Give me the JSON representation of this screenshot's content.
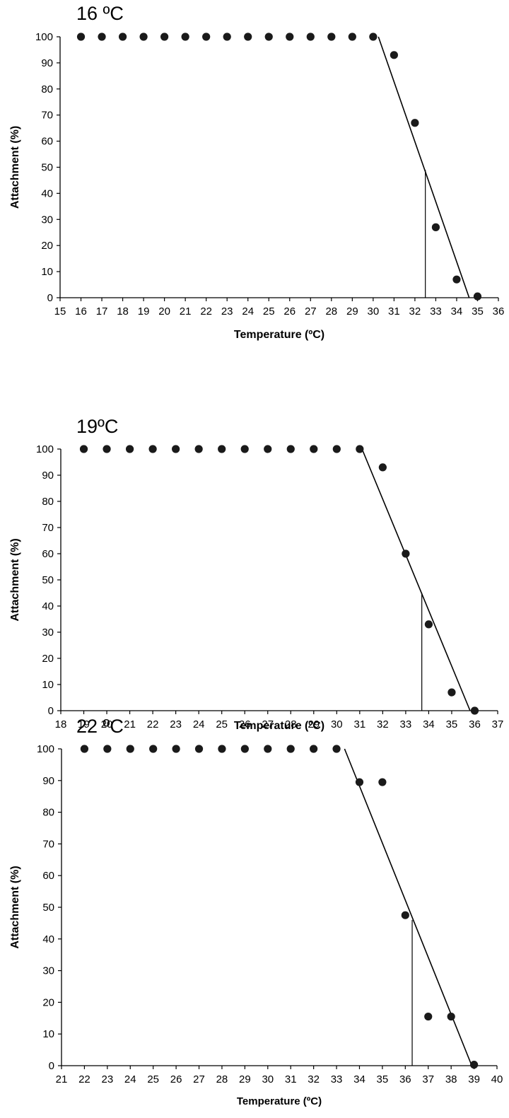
{
  "chart_data": [
    {
      "type": "scatter",
      "title": "16 ºC",
      "xlabel": "Temperature (ºC)",
      "ylabel": "Attachment (%)",
      "xlim": [
        15,
        36
      ],
      "ylim": [
        0,
        100
      ],
      "xticks": [
        "15",
        "16",
        "17",
        "18",
        "19",
        "20",
        "21",
        "22",
        "23",
        "24",
        "25",
        "26",
        "27",
        "28",
        "29",
        "30",
        "31",
        "32",
        "33",
        "34",
        "35",
        "36"
      ],
      "yticks": [
        "0",
        "10",
        "20",
        "30",
        "40",
        "50",
        "60",
        "70",
        "80",
        "90",
        "100"
      ],
      "grid": false,
      "legend": "none",
      "points": {
        "x": [
          16,
          17,
          18,
          19,
          20,
          21,
          22,
          23,
          24,
          25,
          26,
          27,
          28,
          29,
          30,
          31,
          32,
          33,
          34,
          35
        ],
        "y": [
          100,
          100,
          100,
          100,
          100,
          100,
          100,
          100,
          100,
          100,
          100,
          100,
          100,
          100,
          100,
          93,
          67,
          27,
          7,
          0.5
        ]
      },
      "fit_line": {
        "x": [
          30.25,
          34.6
        ],
        "y": [
          100,
          0
        ]
      },
      "midpoint_line": {
        "x": 32.5,
        "y": [
          0,
          49
        ]
      }
    },
    {
      "type": "scatter",
      "title": "19ºC",
      "xlabel": "Temperature (ºC)",
      "ylabel": "Attachment (%)",
      "xlim": [
        18,
        37
      ],
      "ylim": [
        0,
        100
      ],
      "xticks": [
        "18",
        "19",
        "20",
        "21",
        "22",
        "23",
        "24",
        "25",
        "26",
        "27",
        "28",
        "29",
        "30",
        "31",
        "32",
        "33",
        "34",
        "35",
        "36",
        "37"
      ],
      "yticks": [
        "0",
        "10",
        "20",
        "30",
        "40",
        "50",
        "60",
        "70",
        "80",
        "90",
        "100"
      ],
      "grid": false,
      "legend": "none",
      "points": {
        "x": [
          19,
          20,
          21,
          22,
          23,
          24,
          25,
          26,
          27,
          28,
          29,
          30,
          31,
          32,
          33,
          34,
          35,
          36
        ],
        "y": [
          100,
          100,
          100,
          100,
          100,
          100,
          100,
          100,
          100,
          100,
          100,
          100,
          100,
          93,
          60,
          33,
          7,
          0
        ]
      },
      "fit_line": {
        "x": [
          31.1,
          35.8
        ],
        "y": [
          100,
          0
        ]
      },
      "midpoint_line": {
        "x": 33.7,
        "y": [
          0,
          45
        ]
      }
    },
    {
      "type": "scatter",
      "title": "22 ºC",
      "xlabel": "Temperature (ºC)",
      "ylabel": "Attachment (%)",
      "xlim": [
        21,
        40
      ],
      "ylim": [
        0,
        100
      ],
      "xticks": [
        "21",
        "22",
        "23",
        "24",
        "25",
        "26",
        "27",
        "28",
        "29",
        "30",
        "31",
        "32",
        "33",
        "34",
        "35",
        "36",
        "37",
        "38",
        "39",
        "40"
      ],
      "yticks": [
        "0",
        "10",
        "20",
        "30",
        "40",
        "50",
        "60",
        "70",
        "80",
        "90",
        "100"
      ],
      "grid": false,
      "legend": "none",
      "points": {
        "x": [
          22,
          23,
          24,
          25,
          26,
          27,
          28,
          29,
          30,
          31,
          32,
          33,
          34,
          35,
          36,
          37,
          38,
          39
        ],
        "y": [
          100,
          100,
          100,
          100,
          100,
          100,
          100,
          100,
          100,
          100,
          100,
          100,
          89.5,
          89.5,
          47.5,
          15.5,
          15.5,
          0.3
        ]
      },
      "fit_line": {
        "x": [
          33.35,
          38.9
        ],
        "y": [
          100,
          0
        ]
      },
      "midpoint_line": {
        "x": 36.3,
        "y": [
          0,
          46
        ]
      }
    }
  ]
}
